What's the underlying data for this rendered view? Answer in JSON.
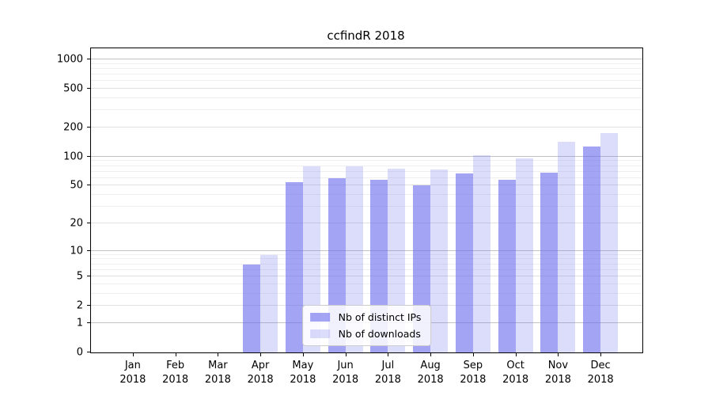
{
  "chart_data": {
    "type": "bar",
    "title": "ccfindR 2018",
    "categories": [
      {
        "month": "Jan",
        "year": "2018"
      },
      {
        "month": "Feb",
        "year": "2018"
      },
      {
        "month": "Mar",
        "year": "2018"
      },
      {
        "month": "Apr",
        "year": "2018"
      },
      {
        "month": "May",
        "year": "2018"
      },
      {
        "month": "Jun",
        "year": "2018"
      },
      {
        "month": "Jul",
        "year": "2018"
      },
      {
        "month": "Aug",
        "year": "2018"
      },
      {
        "month": "Sep",
        "year": "2018"
      },
      {
        "month": "Oct",
        "year": "2018"
      },
      {
        "month": "Nov",
        "year": "2018"
      },
      {
        "month": "Dec",
        "year": "2018"
      }
    ],
    "series": [
      {
        "name": "Nb of distinct IPs",
        "color": "rgba(108,108,238,0.62)",
        "values": [
          0,
          0,
          0,
          7,
          54,
          60,
          58,
          50,
          67,
          58,
          68,
          128
        ]
      },
      {
        "name": "Nb of downloads",
        "color": "rgba(108,108,238,0.24)",
        "values": [
          0,
          0,
          0,
          9,
          80,
          79,
          75,
          74,
          103,
          96,
          144,
          177
        ]
      }
    ],
    "yscale": "log1p",
    "ylim_top": 1300,
    "yticks": [
      0,
      1,
      2,
      5,
      10,
      20,
      50,
      100,
      200,
      500,
      1000
    ],
    "gridlines": {
      "major": [
        1,
        10,
        100,
        1000
      ],
      "labeled": [
        2,
        5,
        20,
        50,
        200,
        500
      ],
      "minor": [
        3,
        4,
        6,
        7,
        8,
        9,
        30,
        40,
        60,
        70,
        80,
        90,
        300,
        400,
        600,
        700,
        800,
        900
      ]
    },
    "grid": true,
    "legend_position": "lower center"
  },
  "colors": {
    "bar_distinct_ips": "#a5a5f2",
    "bar_downloads": "#dbdbfa",
    "grid_major": "#c3c3c3",
    "grid_minor": "#efefef",
    "axis": "#000000",
    "background": "#ffffff"
  }
}
